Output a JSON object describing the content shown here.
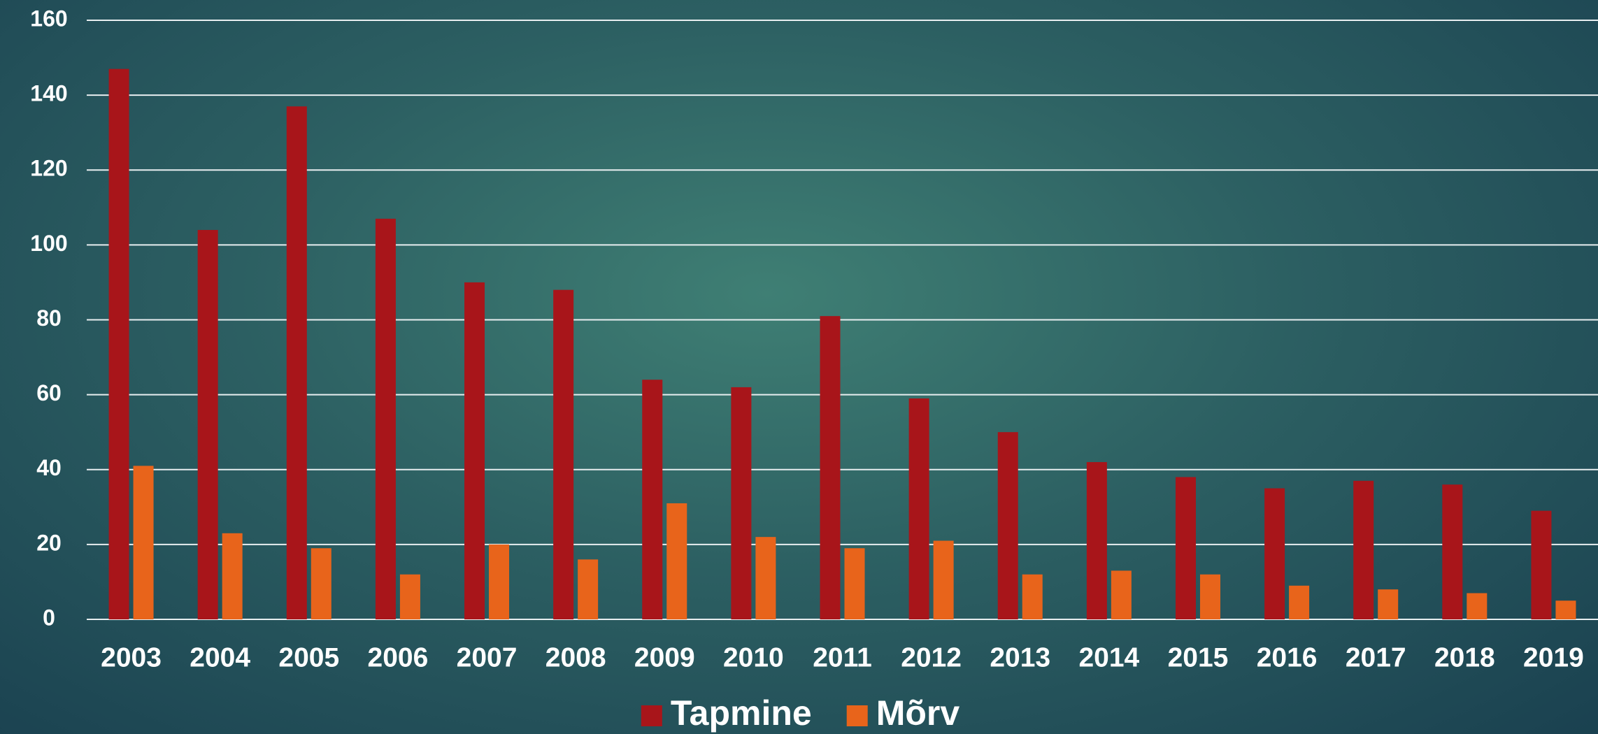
{
  "chart_data": {
    "type": "bar",
    "categories": [
      "2003",
      "2004",
      "2005",
      "2006",
      "2007",
      "2008",
      "2009",
      "2010",
      "2011",
      "2012",
      "2013",
      "2014",
      "2015",
      "2016",
      "2017",
      "2018",
      "2019"
    ],
    "series": [
      {
        "name": "Tapmine",
        "color": "#a8151a",
        "values": [
          147,
          104,
          137,
          107,
          90,
          88,
          64,
          62,
          81,
          59,
          50,
          42,
          38,
          35,
          37,
          36,
          29
        ]
      },
      {
        "name": "Mõrv",
        "color": "#e8641b",
        "values": [
          41,
          23,
          19,
          12,
          20,
          16,
          31,
          22,
          19,
          21,
          12,
          13,
          12,
          9,
          8,
          7,
          5
        ]
      }
    ],
    "ylim": [
      0,
      160
    ],
    "yticks": [
      0,
      20,
      40,
      60,
      80,
      100,
      120,
      140,
      160
    ],
    "grid": true,
    "legend": "bottom"
  }
}
